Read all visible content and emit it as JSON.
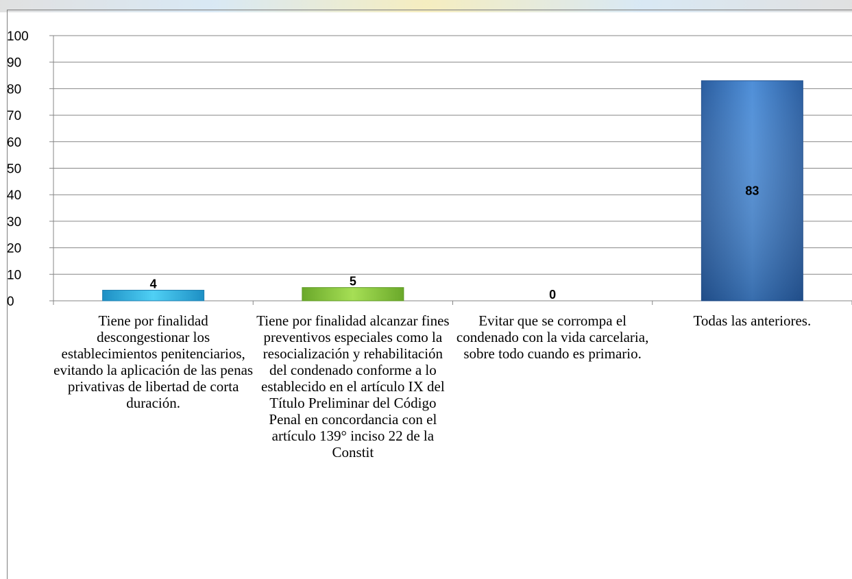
{
  "chart_data": {
    "type": "bar",
    "categories": [
      "Tiene por finalidad descongestionar los establecimientos penitenciarios, evitando la aplicación de las penas privativas de libertad de corta duración.",
      "Tiene por finalidad alcanzar fines preventivos especiales como la resocialización y rehabilitación del condenado conforme a lo establecido en el artículo IX del Título Preliminar del Código Penal en concordancia con el artículo 139° inciso 22 de la Constit",
      "Evitar que se corrompa el condenado con la vida carcelaria, sobre todo cuando es primario.",
      "Todas las anteriores."
    ],
    "values": [
      4,
      5,
      0,
      83
    ],
    "data_labels": [
      "4",
      "5",
      "0",
      "83"
    ],
    "colors": [
      "#33b6e8",
      "#8fce3f",
      "#5b9bd5",
      "#2f6db8"
    ],
    "ylim": [
      0,
      100
    ],
    "yticks": [
      "0",
      "10",
      "20",
      "30",
      "40",
      "50",
      "60",
      "70",
      "80",
      "90",
      "100"
    ],
    "grid": true,
    "legend": "none"
  }
}
